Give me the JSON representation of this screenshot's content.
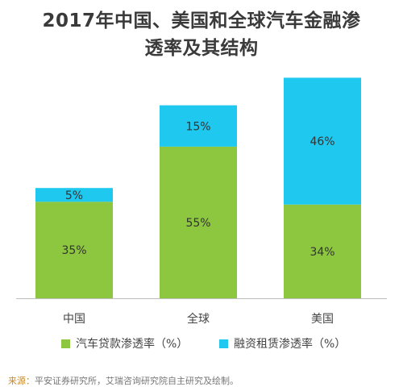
{
  "title_line1": "2017年中国、美国和全球汽车金融渗",
  "title_line2": "透率及其结构",
  "chart_data": {
    "type": "bar",
    "stacked": true,
    "categories": [
      "中国",
      "全球",
      "美国"
    ],
    "series": [
      {
        "name": "汽车贷款渗透率（%）",
        "color": "#8dc63f",
        "values": [
          35,
          55,
          34
        ]
      },
      {
        "name": "融资租赁渗透率（%）",
        "color": "#1ec8ef",
        "values": [
          5,
          15,
          46
        ]
      }
    ],
    "value_labels": [
      [
        "35%",
        "55%",
        "34%"
      ],
      [
        "5%",
        "15%",
        "46%"
      ]
    ],
    "grid": false,
    "legend_position": "bottom"
  },
  "legend": [
    {
      "label": "汽车贷款渗透率（%）",
      "color": "#8dc63f"
    },
    {
      "label": "融资租赁渗透率（%）",
      "color": "#1ec8ef"
    }
  ],
  "source_lead": "来源：",
  "source_text": "平安证券研究所，艾瑞咨询研究院自主研究及绘制。"
}
